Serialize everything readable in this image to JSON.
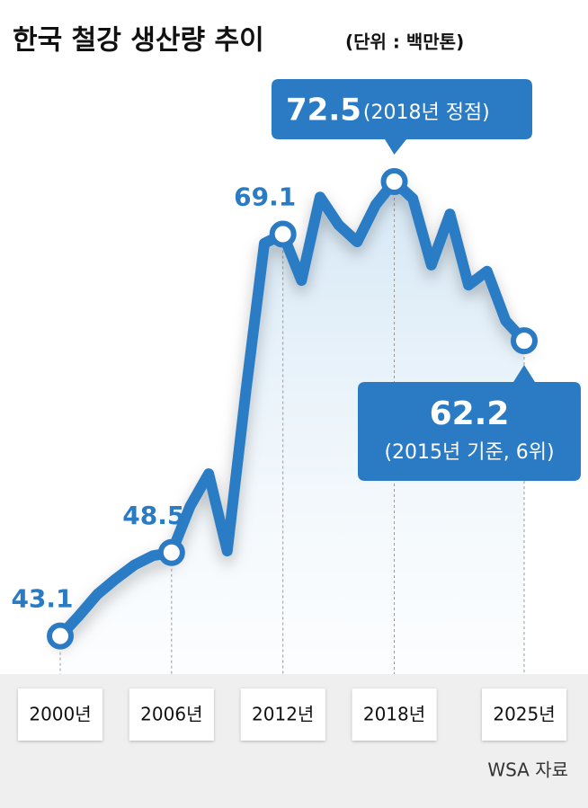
{
  "chart_data": {
    "type": "line",
    "title": "한국 철강 생산량 추이",
    "subtitle": "(단위 : 백만톤)",
    "source": "WSA 자료",
    "annotations": [
      "(2018년 정점)",
      "(2015년 기준, 6위)"
    ],
    "x": [
      2000,
      2001,
      2002,
      2003,
      2004,
      2005,
      2006,
      2007,
      2008,
      2009,
      2010,
      2011,
      2012,
      2013,
      2014,
      2015,
      2016,
      2017,
      2018,
      2019,
      2020,
      2021,
      2022,
      2023,
      2024,
      2025
    ],
    "series": [
      {
        "name": "생산량",
        "color": "#2a7bc4",
        "values": [
          43.1,
          44.4,
          45.8,
          46.8,
          47.7,
          48.3,
          48.5,
          51.5,
          53.6,
          48.6,
          58.9,
          68.5,
          69.1,
          66.1,
          71.5,
          69.7,
          68.6,
          71.0,
          72.5,
          71.4,
          67.1,
          70.4,
          65.8,
          66.7,
          63.5,
          62.2
        ]
      }
    ],
    "xlim": [
      2000,
      2025
    ],
    "ylim": [
      40,
      75
    ],
    "xticks": [
      {
        "value": 2000,
        "label": "2000년"
      },
      {
        "value": 2006,
        "label": "2006년"
      },
      {
        "value": 2012,
        "label": "2012년"
      },
      {
        "value": 2018,
        "label": "2018년"
      },
      {
        "value": 2025,
        "label": "2025년"
      }
    ]
  }
}
